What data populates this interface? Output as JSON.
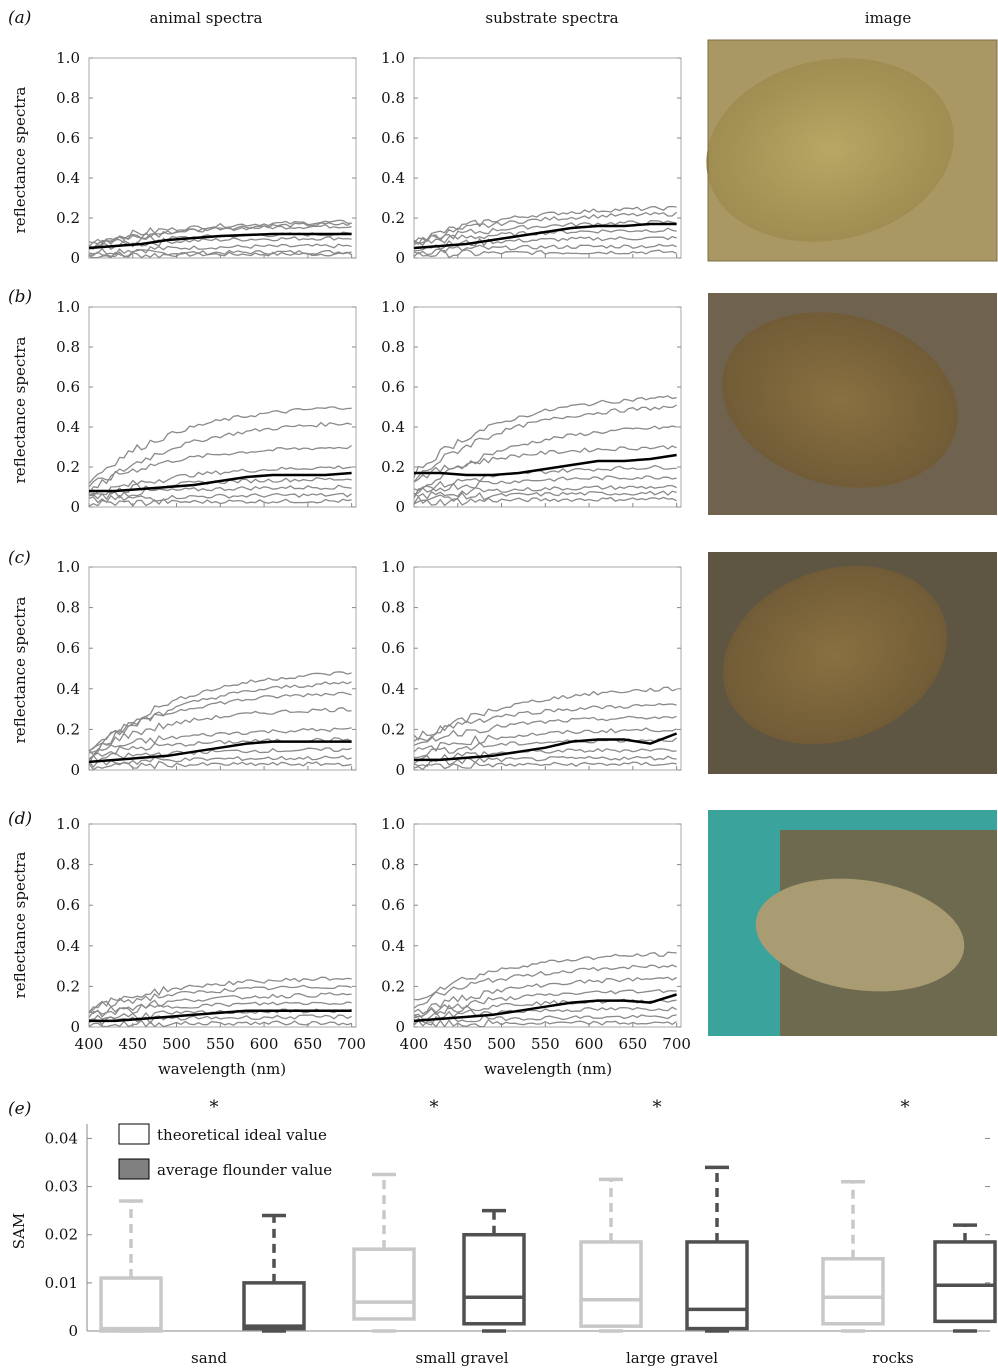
{
  "columns": {
    "animal": "animal spectra",
    "substrate": "substrate spectra",
    "image": "image"
  },
  "panel_labels": [
    "(a)",
    "(b)",
    "(c)",
    "(d)",
    "(e)"
  ],
  "spectra_ylabel": "reflectance spectra",
  "wavelength_label": "wavelength (nm)",
  "colors": {
    "individual": "#8a8a8a",
    "mean": "#000000",
    "ideal": "#c8c8c8",
    "flounder": "#505050"
  },
  "chart_data": [
    {
      "type": "line",
      "panels": [
        {
          "label": "(a)",
          "animal": {
            "mean": [
              0.05,
              0.06,
              0.07,
              0.09,
              0.1,
              0.11,
              0.115,
              0.12,
              0.12,
              0.12,
              0.12
            ],
            "spread": [
              0.02,
              0.03,
              0.06,
              0.1,
              0.12,
              0.16,
              0.17,
              0.18
            ]
          },
          "substrate": {
            "mean": [
              0.05,
              0.06,
              0.07,
              0.09,
              0.11,
              0.13,
              0.15,
              0.16,
              0.16,
              0.17,
              0.17
            ],
            "spread": [
              0.03,
              0.06,
              0.1,
              0.14,
              0.18,
              0.22,
              0.25
            ]
          }
        },
        {
          "label": "(b)",
          "animal": {
            "mean": [
              0.08,
              0.08,
              0.09,
              0.1,
              0.11,
              0.13,
              0.15,
              0.16,
              0.16,
              0.16,
              0.17
            ],
            "spread": [
              0.03,
              0.06,
              0.1,
              0.14,
              0.2,
              0.3,
              0.42,
              0.5
            ]
          },
          "substrate": {
            "mean": [
              0.17,
              0.17,
              0.16,
              0.16,
              0.17,
              0.19,
              0.21,
              0.23,
              0.23,
              0.24,
              0.26
            ],
            "spread": [
              0.04,
              0.07,
              0.1,
              0.15,
              0.2,
              0.3,
              0.4,
              0.5,
              0.55
            ]
          }
        },
        {
          "label": "(c)",
          "animal": {
            "mean": [
              0.04,
              0.05,
              0.06,
              0.07,
              0.09,
              0.11,
              0.13,
              0.14,
              0.14,
              0.14,
              0.14
            ],
            "spread": [
              0.03,
              0.06,
              0.1,
              0.15,
              0.2,
              0.3,
              0.38,
              0.43,
              0.48
            ]
          },
          "substrate": {
            "mean": [
              0.05,
              0.05,
              0.06,
              0.07,
              0.09,
              0.11,
              0.14,
              0.15,
              0.15,
              0.13,
              0.18
            ],
            "spread": [
              0.03,
              0.06,
              0.1,
              0.15,
              0.2,
              0.26,
              0.32,
              0.4
            ]
          }
        },
        {
          "label": "(d)",
          "animal": {
            "mean": [
              0.03,
              0.03,
              0.04,
              0.05,
              0.06,
              0.07,
              0.08,
              0.08,
              0.08,
              0.08,
              0.08
            ],
            "spread": [
              0.02,
              0.05,
              0.08,
              0.12,
              0.16,
              0.2,
              0.24
            ]
          },
          "substrate": {
            "mean": [
              0.03,
              0.04,
              0.05,
              0.06,
              0.08,
              0.1,
              0.12,
              0.13,
              0.13,
              0.12,
              0.16
            ],
            "spread": [
              0.02,
              0.05,
              0.09,
              0.13,
              0.18,
              0.24,
              0.3,
              0.36
            ]
          }
        }
      ],
      "x": [
        400,
        430,
        460,
        490,
        520,
        550,
        580,
        610,
        640,
        670,
        700
      ],
      "xticks": [
        400,
        450,
        500,
        550,
        600,
        650,
        700
      ],
      "xlim": [
        400,
        705
      ],
      "yticks": [
        0,
        0.2,
        0.4,
        0.6,
        0.8,
        1.0
      ],
      "ytick_labels": [
        "0",
        "0.2",
        "0.4",
        "0.6",
        "0.8",
        "1.0"
      ],
      "ylim": [
        0,
        1.0
      ],
      "xlabel": "wavelength (nm)",
      "ylabel": "reflectance spectra"
    },
    {
      "type": "box",
      "categories": [
        "sand",
        "small gravel",
        "large gravel",
        "rocks"
      ],
      "series": [
        {
          "name": "theoretical ideal value",
          "boxes": [
            {
              "whisker_low": 0,
              "q1": 0,
              "median": 0.0005,
              "q3": 0.011,
              "whisker_high": 0.027
            },
            {
              "whisker_low": 0,
              "q1": 0.0025,
              "median": 0.006,
              "q3": 0.017,
              "whisker_high": 0.0325
            },
            {
              "whisker_low": 0,
              "q1": 0.001,
              "median": 0.0065,
              "q3": 0.0185,
              "whisker_high": 0.0315
            },
            {
              "whisker_low": 0,
              "q1": 0.0015,
              "median": 0.007,
              "q3": 0.015,
              "whisker_high": 0.031
            }
          ]
        },
        {
          "name": "average flounder value",
          "boxes": [
            {
              "whisker_low": 0,
              "q1": 0.0005,
              "median": 0.001,
              "q3": 0.01,
              "whisker_high": 0.024
            },
            {
              "whisker_low": 0,
              "q1": 0.0015,
              "median": 0.007,
              "q3": 0.02,
              "whisker_high": 0.025
            },
            {
              "whisker_low": 0,
              "q1": 0.0005,
              "median": 0.0045,
              "q3": 0.0185,
              "whisker_high": 0.034
            },
            {
              "whisker_low": 0,
              "q1": 0.002,
              "median": 0.0095,
              "q3": 0.0185,
              "whisker_high": 0.022
            }
          ]
        }
      ],
      "significance": [
        "*",
        "*",
        "*",
        "*"
      ],
      "ylabel": "SAM",
      "yticks": [
        0,
        0.01,
        0.02,
        0.03,
        0.04
      ],
      "ytick_labels": [
        "0",
        "0.01",
        "0.02",
        "0.03",
        "0.04"
      ],
      "ylim": [
        0,
        0.043
      ],
      "legend": "top-left"
    }
  ]
}
